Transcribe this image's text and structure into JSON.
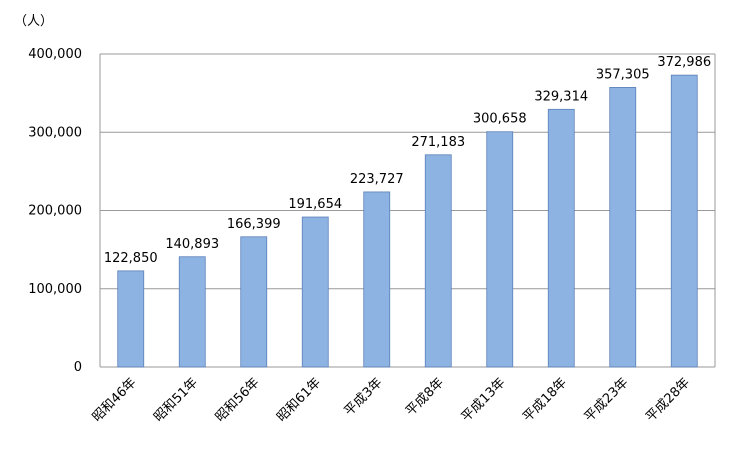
{
  "chart_data": {
    "type": "bar",
    "unit": "（人）",
    "categories": [
      "昭和46年",
      "昭和51年",
      "昭和56年",
      "昭和61年",
      "平成3年",
      "平成8年",
      "平成13年",
      "平成18年",
      "平成23年",
      "平成28年"
    ],
    "values": [
      122850,
      140893,
      166399,
      191654,
      223727,
      271183,
      300658,
      329314,
      357305,
      372986
    ],
    "value_labels": [
      "122,850",
      "140,893",
      "166,399",
      "191,654",
      "223,727",
      "271,183",
      "300,658",
      "329,314",
      "357,305",
      "372,986"
    ],
    "ylim": [
      0,
      400000
    ],
    "yticks": [
      0,
      100000,
      200000,
      300000,
      400000
    ],
    "ytick_labels": [
      "0",
      "100,000",
      "200,000",
      "300,000",
      "400,000"
    ],
    "grid": true,
    "legend": "none",
    "colors": {
      "bar_fill": "#8db3e2",
      "bar_stroke": "#5b7fb8",
      "grid": "#999999",
      "axis": "#999999"
    }
  }
}
